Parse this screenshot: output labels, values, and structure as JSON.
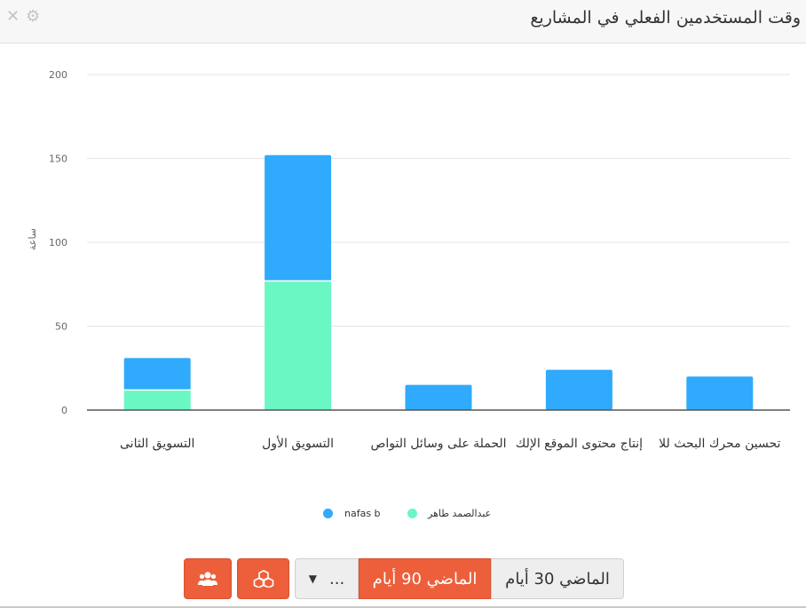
{
  "header": {
    "title": "وقت المستخدمين الفعلي في المشاريع",
    "close_icon": "close-icon",
    "settings_icon": "gear-icon"
  },
  "chart_data": {
    "type": "bar",
    "stacked": true,
    "ylabel": "ساعة",
    "ylim": [
      0,
      200
    ],
    "yticks": [
      0,
      50,
      100,
      150,
      200
    ],
    "grid": true,
    "legend_position": "bottom",
    "categories": [
      "التسويق الثانى",
      "التسويق الأول",
      "الحملة على وسائل التواص",
      "إنتاج محتوى الموقع الإلك",
      "تحسين محرك البحث للا"
    ],
    "series": [
      {
        "name": "عبدالصمد طاهر",
        "color": "#6af7c3",
        "values": [
          12,
          77,
          0,
          0,
          0
        ]
      },
      {
        "name": "nafas b",
        "color": "#2faafc",
        "values": [
          19,
          75,
          15,
          24,
          20
        ]
      }
    ]
  },
  "legend": {
    "items": [
      {
        "label": "nafas b",
        "color": "#2faafc"
      },
      {
        "label": "عبدالصمد طاهر",
        "color": "#6af7c3"
      }
    ]
  },
  "toolbar": {
    "team_icon": "users-icon",
    "projects_icon": "cubes-icon",
    "more_label": "...",
    "more_icon": "caret-down-icon",
    "period_90_label": "الماضي 90 أيام",
    "period_30_label": "الماضي 30 أيام",
    "accent_color": "#ed5f3b"
  }
}
